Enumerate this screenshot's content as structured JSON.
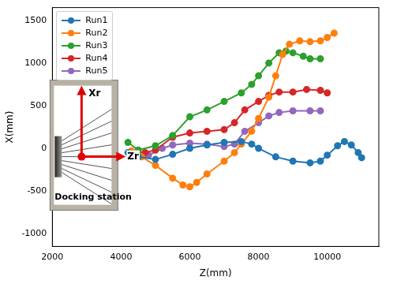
{
  "chart_data": {
    "type": "line",
    "x_label": "Z(mm)",
    "y_label": "X(mm)",
    "xlim": [
      2000,
      11500
    ],
    "xticks": [
      2000,
      4000,
      6000,
      8000,
      10000
    ],
    "ylim": [
      -1150,
      1650
    ],
    "yticks": [
      -1000,
      -500,
      0,
      500,
      1000,
      1500
    ],
    "grid": false,
    "legend": "upper left",
    "marker": "circle",
    "annotations": [
      "Xr",
      "Zr",
      "Docking station"
    ],
    "series": [
      {
        "name": "Run1",
        "color": "#1f77b4",
        "x": [
          4200,
          4500,
          5000,
          5500,
          6000,
          6500,
          7000,
          7500,
          7800,
          8000,
          8500,
          9000,
          9500,
          9800,
          10000,
          10300,
          10500,
          10700,
          10900,
          11000
        ],
        "values": [
          -50,
          -100,
          -130,
          -70,
          0,
          40,
          70,
          80,
          50,
          0,
          -100,
          -150,
          -170,
          -150,
          -80,
          30,
          80,
          40,
          -50,
          -110
        ]
      },
      {
        "name": "Run2",
        "color": "#ff7f0e",
        "x": [
          4300,
          4600,
          5000,
          5500,
          5800,
          6000,
          6200,
          6500,
          7000,
          7300,
          7500,
          7800,
          8000,
          8300,
          8500,
          8700,
          8900,
          9200,
          9500,
          9800,
          10000,
          10200
        ],
        "values": [
          -30,
          -100,
          -200,
          -350,
          -430,
          -450,
          -400,
          -300,
          -150,
          -50,
          50,
          200,
          350,
          600,
          850,
          1100,
          1220,
          1260,
          1250,
          1260,
          1300,
          1350
        ]
      },
      {
        "name": "Run3",
        "color": "#2ca02c",
        "x": [
          4200,
          4500,
          5000,
          5500,
          6000,
          6500,
          7000,
          7500,
          7800,
          8000,
          8300,
          8600,
          8800,
          9000,
          9300,
          9500,
          9800
        ],
        "values": [
          70,
          -20,
          30,
          150,
          370,
          450,
          550,
          650,
          750,
          850,
          1000,
          1120,
          1140,
          1120,
          1080,
          1050,
          1050
        ]
      },
      {
        "name": "Run4",
        "color": "#d62728",
        "x": [
          4300,
          4700,
          5000,
          5500,
          6000,
          6500,
          7000,
          7300,
          7600,
          8000,
          8300,
          8600,
          9000,
          9400,
          9800,
          10000
        ],
        "values": [
          -50,
          -50,
          -20,
          130,
          180,
          200,
          220,
          300,
          450,
          550,
          620,
          660,
          660,
          690,
          680,
          650
        ]
      },
      {
        "name": "Run5",
        "color": "#9467bd",
        "x": [
          4300,
          4800,
          5200,
          5500,
          6000,
          6500,
          7000,
          7300,
          7600,
          8000,
          8300,
          8600,
          9000,
          9500,
          9800
        ],
        "values": [
          -120,
          -80,
          0,
          40,
          60,
          50,
          20,
          50,
          200,
          300,
          380,
          420,
          440,
          440,
          440
        ]
      }
    ]
  }
}
